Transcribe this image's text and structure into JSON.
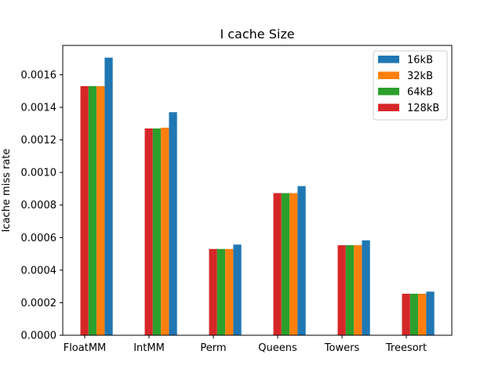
{
  "chart_data": {
    "type": "bar",
    "title": "I cache Size",
    "xlabel": "",
    "ylabel": "Icache miss rate",
    "categories": [
      "FloatMM",
      "IntMM",
      "Perm",
      "Queens",
      "Towers",
      "Treesort"
    ],
    "ylim": [
      0,
      0.00178
    ],
    "yticks": [
      "0.0000",
      "0.0002",
      "0.0004",
      "0.0006",
      "0.0008",
      "0.0010",
      "0.0012",
      "0.0014",
      "0.0016"
    ],
    "grid": false,
    "legend_position": "top-right",
    "bar_order": [
      "128kB",
      "64kB",
      "32kB",
      "16kB"
    ],
    "series": [
      {
        "name": "16kB",
        "color": "#1f77b4",
        "values": [
          0.001705,
          0.00137,
          0.000557,
          0.000916,
          0.000583,
          0.000268
        ]
      },
      {
        "name": "32kB",
        "color": "#ff7f0e",
        "values": [
          0.00153,
          0.001275,
          0.00053,
          0.000873,
          0.000553,
          0.000255
        ]
      },
      {
        "name": "64kB",
        "color": "#2ca02c",
        "values": [
          0.00153,
          0.00127,
          0.00053,
          0.000873,
          0.000553,
          0.000255
        ]
      },
      {
        "name": "128kB",
        "color": "#d62728",
        "values": [
          0.00153,
          0.00127,
          0.00053,
          0.000873,
          0.000553,
          0.000255
        ]
      }
    ]
  }
}
